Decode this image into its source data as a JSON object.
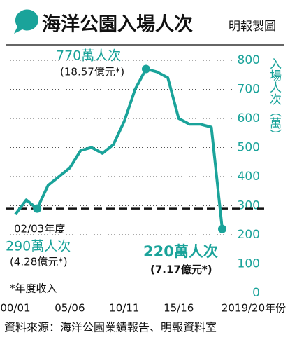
{
  "chart_data": {
    "type": "line",
    "title": "海洋公園入場人次",
    "source_credit": "明報製圖",
    "y_axis_label": "入場人次（萬）",
    "categories": [
      "00/01",
      null,
      null,
      null,
      null,
      "05/06",
      null,
      null,
      null,
      null,
      "10/11",
      null,
      null,
      null,
      null,
      "15/16",
      null,
      null,
      null,
      "2019/20年份"
    ],
    "series": [
      {
        "name": "入場人次",
        "color": "#1aa39a",
        "values": [
          270,
          320,
          290,
          370,
          400,
          430,
          490,
          500,
          480,
          510,
          590,
          700,
          770,
          760,
          740,
          600,
          580,
          580,
          570,
          220
        ]
      }
    ],
    "ylim": [
      0,
      800
    ],
    "yticks": [
      0,
      100,
      200,
      300,
      400,
      500,
      600,
      700,
      800
    ],
    "grid": true,
    "reference_line": 290,
    "highlight_points": [
      2,
      12,
      19
    ],
    "annotations": {
      "peak": "770萬人次",
      "peak_revenue": "(18.57億元*)",
      "year_0203": "02/03年度",
      "low": "290萬人次",
      "low_revenue": "(4.28億元*)",
      "latest": "220萬人次",
      "latest_revenue": "(7.17億元*)"
    },
    "note": "*年度收入",
    "source": "資料來源：海洋公園業績報告、明報資料室"
  }
}
